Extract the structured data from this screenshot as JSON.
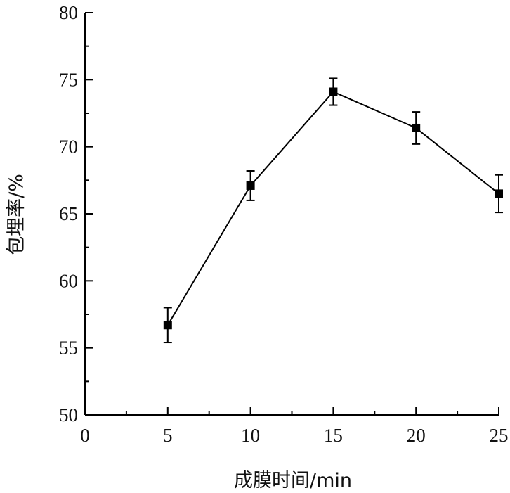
{
  "chart_data": {
    "type": "line",
    "xlabel": "成膜时间/min",
    "ylabel": "包埋率/%",
    "xlim": [
      0,
      25
    ],
    "ylim": [
      50,
      80
    ],
    "x_ticks": [
      "0",
      "5",
      "10",
      "15",
      "20",
      "25"
    ],
    "y_ticks": [
      "50",
      "55",
      "60",
      "65",
      "70",
      "75",
      "80"
    ],
    "grid": false,
    "series": [
      {
        "x": [
          5,
          10,
          15,
          20,
          25
        ],
        "y": [
          56.7,
          67.1,
          74.1,
          71.4,
          66.5
        ],
        "error": [
          1.3,
          1.1,
          1.0,
          1.2,
          1.4
        ],
        "marker": "square",
        "color": "#000000"
      }
    ]
  }
}
